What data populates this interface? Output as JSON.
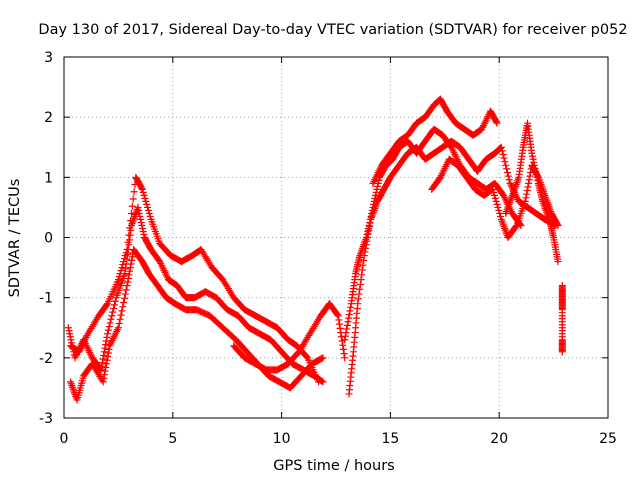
{
  "chart_data": {
    "type": "scatter",
    "title": "Day 130 of 2017, Sidereal Day-to-day VTEC variation (SDTVAR) for receiver p052",
    "xlabel": "GPS time / hours",
    "ylabel": "SDTVAR / TECUs",
    "xlim": [
      0,
      25
    ],
    "ylim": [
      -3,
      3
    ],
    "xticks": [
      0,
      5,
      10,
      15,
      20,
      25
    ],
    "yticks": [
      -3,
      -2,
      -1,
      0,
      1,
      2,
      3
    ],
    "xtick_labels": [
      "0",
      "5",
      "10",
      "15",
      "20",
      "25"
    ],
    "ytick_labels": [
      "-3",
      "-2",
      "-1",
      "0",
      "1",
      "2",
      "3"
    ],
    "grid": true,
    "legend": "none",
    "marker": "+",
    "series": [
      {
        "name": "SDTVAR",
        "color": "#ff0000",
        "tracks": [
          [
            [
              0.2,
              -1.5
            ],
            [
              0.5,
              -2.0
            ],
            [
              0.9,
              -1.7
            ],
            [
              1.3,
              -2.0
            ],
            [
              1.7,
              -2.2
            ],
            [
              2.0,
              -1.6
            ],
            [
              2.4,
              -1.0
            ],
            [
              2.8,
              -0.6
            ],
            [
              3.1,
              0.2
            ],
            [
              3.4,
              0.5
            ],
            [
              3.7,
              0.0
            ],
            [
              4.0,
              -0.2
            ],
            [
              4.4,
              -0.4
            ],
            [
              4.8,
              -0.7
            ],
            [
              5.2,
              -0.8
            ],
            [
              5.6,
              -1.0
            ],
            [
              6.0,
              -1.0
            ],
            [
              6.5,
              -0.9
            ],
            [
              7.0,
              -1.0
            ],
            [
              7.5,
              -1.2
            ],
            [
              8.0,
              -1.3
            ],
            [
              8.5,
              -1.5
            ],
            [
              9.0,
              -1.6
            ],
            [
              9.5,
              -1.7
            ],
            [
              10.0,
              -1.9
            ],
            [
              10.5,
              -2.1
            ],
            [
              11.0,
              -2.2
            ],
            [
              11.5,
              -2.3
            ],
            [
              11.9,
              -2.4
            ]
          ],
          [
            [
              0.3,
              -2.4
            ],
            [
              0.6,
              -2.7
            ],
            [
              0.9,
              -2.3
            ],
            [
              1.3,
              -2.1
            ],
            [
              1.8,
              -2.4
            ],
            [
              2.1,
              -1.8
            ],
            [
              2.5,
              -1.5
            ],
            [
              2.9,
              -0.8
            ],
            [
              3.2,
              -0.2
            ],
            [
              3.6,
              -0.4
            ],
            [
              3.9,
              -0.6
            ],
            [
              4.3,
              -0.8
            ],
            [
              4.7,
              -1.0
            ],
            [
              5.1,
              -1.1
            ],
            [
              5.6,
              -1.2
            ],
            [
              6.1,
              -1.2
            ],
            [
              6.7,
              -1.3
            ],
            [
              7.3,
              -1.5
            ],
            [
              7.9,
              -1.7
            ],
            [
              8.4,
              -1.9
            ],
            [
              8.9,
              -2.1
            ],
            [
              9.4,
              -2.3
            ],
            [
              9.9,
              -2.4
            ],
            [
              10.4,
              -2.5
            ],
            [
              10.9,
              -2.3
            ],
            [
              11.4,
              -2.1
            ],
            [
              11.9,
              -2.0
            ]
          ],
          [
            [
              0.3,
              -1.8
            ],
            [
              0.7,
              -1.9
            ],
            [
              1.1,
              -1.6
            ],
            [
              1.6,
              -1.3
            ],
            [
              2.0,
              -1.1
            ],
            [
              2.5,
              -0.7
            ],
            [
              2.9,
              -0.2
            ],
            [
              3.3,
              1.0
            ],
            [
              3.6,
              0.8
            ],
            [
              4.0,
              0.3
            ],
            [
              4.4,
              -0.1
            ],
            [
              4.9,
              -0.3
            ],
            [
              5.4,
              -0.4
            ],
            [
              5.9,
              -0.3
            ],
            [
              6.3,
              -0.2
            ],
            [
              6.8,
              -0.5
            ],
            [
              7.3,
              -0.7
            ],
            [
              7.8,
              -1.0
            ],
            [
              8.3,
              -1.2
            ],
            [
              8.8,
              -1.3
            ],
            [
              9.3,
              -1.4
            ],
            [
              9.8,
              -1.5
            ],
            [
              10.3,
              -1.7
            ],
            [
              10.7,
              -1.8
            ],
            [
              11.2,
              -2.0
            ],
            [
              11.7,
              -2.4
            ]
          ],
          [
            [
              7.8,
              -1.8
            ],
            [
              8.3,
              -2.0
            ],
            [
              8.8,
              -2.1
            ],
            [
              9.3,
              -2.2
            ],
            [
              9.8,
              -2.2
            ],
            [
              10.3,
              -2.1
            ],
            [
              10.8,
              -1.9
            ],
            [
              11.3,
              -1.6
            ],
            [
              11.8,
              -1.3
            ],
            [
              12.2,
              -1.1
            ],
            [
              12.6,
              -1.3
            ],
            [
              12.9,
              -2.0
            ]
          ],
          [
            [
              12.9,
              -1.7
            ],
            [
              13.2,
              -1.1
            ],
            [
              13.4,
              -0.6
            ],
            [
              13.6,
              -0.3
            ],
            [
              13.9,
              0.0
            ],
            [
              14.2,
              0.5
            ],
            [
              14.5,
              1.0
            ],
            [
              14.8,
              1.2
            ],
            [
              15.1,
              1.3
            ],
            [
              15.4,
              1.5
            ],
            [
              15.8,
              1.6
            ],
            [
              16.2,
              1.4
            ],
            [
              16.6,
              1.6
            ],
            [
              17.0,
              1.8
            ],
            [
              17.4,
              1.7
            ],
            [
              17.8,
              1.5
            ],
            [
              18.2,
              1.2
            ],
            [
              18.6,
              1.0
            ],
            [
              19.0,
              0.9
            ],
            [
              19.4,
              0.8
            ],
            [
              19.8,
              0.9
            ],
            [
              20.2,
              0.7
            ],
            [
              20.6,
              0.4
            ],
            [
              21.0,
              0.2
            ]
          ],
          [
            [
              13.1,
              -2.6
            ],
            [
              13.3,
              -1.9
            ],
            [
              13.5,
              -1.1
            ],
            [
              13.8,
              -0.3
            ],
            [
              14.1,
              0.3
            ],
            [
              14.4,
              0.6
            ],
            [
              14.7,
              0.8
            ],
            [
              15.0,
              1.0
            ],
            [
              15.4,
              1.2
            ],
            [
              15.8,
              1.4
            ],
            [
              16.2,
              1.5
            ],
            [
              16.6,
              1.3
            ],
            [
              17.0,
              1.4
            ],
            [
              17.4,
              1.5
            ],
            [
              17.8,
              1.6
            ],
            [
              18.2,
              1.5
            ],
            [
              18.6,
              1.3
            ],
            [
              19.0,
              1.1
            ],
            [
              19.4,
              1.3
            ],
            [
              19.8,
              1.4
            ],
            [
              20.1,
              1.5
            ],
            [
              20.5,
              0.9
            ],
            [
              20.9,
              0.6
            ],
            [
              21.3,
              0.5
            ],
            [
              21.7,
              0.4
            ],
            [
              22.1,
              0.3
            ],
            [
              22.6,
              0.2
            ]
          ],
          [
            [
              14.2,
              0.9
            ],
            [
              14.6,
              1.2
            ],
            [
              15.0,
              1.4
            ],
            [
              15.4,
              1.6
            ],
            [
              15.8,
              1.7
            ],
            [
              16.2,
              1.9
            ],
            [
              16.6,
              2.0
            ],
            [
              17.0,
              2.2
            ],
            [
              17.3,
              2.3
            ],
            [
              17.6,
              2.1
            ],
            [
              18.0,
              1.9
            ],
            [
              18.4,
              1.8
            ],
            [
              18.8,
              1.7
            ],
            [
              19.2,
              1.8
            ],
            [
              19.6,
              2.1
            ],
            [
              19.9,
              1.9
            ]
          ],
          [
            [
              16.9,
              0.8
            ],
            [
              17.3,
              1.0
            ],
            [
              17.7,
              1.3
            ],
            [
              18.1,
              1.2
            ],
            [
              18.5,
              1.0
            ],
            [
              18.9,
              0.8
            ],
            [
              19.3,
              0.7
            ],
            [
              19.7,
              0.8
            ],
            [
              20.1,
              0.3
            ],
            [
              20.4,
              0.0
            ],
            [
              20.8,
              0.2
            ],
            [
              21.2,
              0.6
            ],
            [
              21.5,
              1.2
            ],
            [
              21.8,
              1.0
            ],
            [
              22.1,
              0.7
            ],
            [
              22.4,
              0.4
            ],
            [
              22.7,
              0.2
            ]
          ],
          [
            [
              20.3,
              0.4
            ],
            [
              20.6,
              0.7
            ],
            [
              20.9,
              1.0
            ],
            [
              21.1,
              1.5
            ],
            [
              21.3,
              1.9
            ],
            [
              21.5,
              1.4
            ],
            [
              21.8,
              0.9
            ],
            [
              22.0,
              0.6
            ],
            [
              22.3,
              0.3
            ],
            [
              22.5,
              0.0
            ],
            [
              22.7,
              -0.4
            ]
          ],
          [
            [
              22.9,
              -0.8
            ],
            [
              22.9,
              -1.0
            ],
            [
              22.9,
              -1.2
            ],
            [
              22.9,
              -1.7
            ],
            [
              22.9,
              -1.9
            ]
          ]
        ]
      }
    ]
  }
}
